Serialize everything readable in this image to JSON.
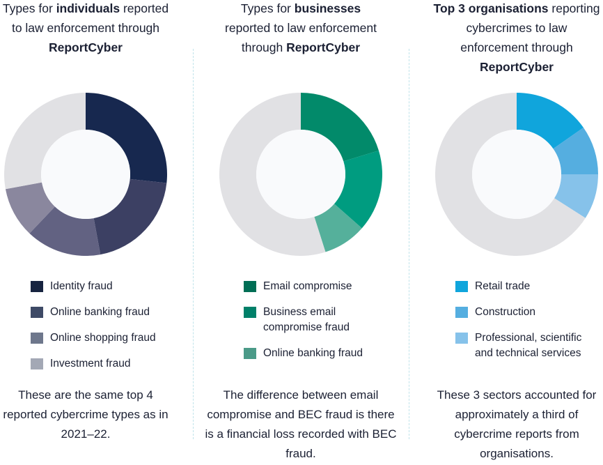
{
  "chart_data": [
    {
      "type": "pie",
      "donut": true,
      "title_parts": [
        "Types for ",
        "individuals",
        " reported to law enforcement through ",
        "ReportCyber"
      ],
      "series": [
        {
          "name": "Identity fraud",
          "value": 26.7,
          "color": "#17284f",
          "legend_color": "#172440"
        },
        {
          "name": "Online banking fraud",
          "value": 20.4,
          "color": "#3c4063",
          "legend_color": "#3e4a66"
        },
        {
          "name": "Online shopping fraud",
          "value": 15,
          "color": "#626282",
          "legend_color": "#6e778c"
        },
        {
          "name": "Investment fraud",
          "value": 10,
          "color": "#8a879e",
          "legend_color": "#a3a8b5"
        }
      ],
      "remainder_color": "#e1e1e4",
      "note": "These are the same top 4 reported cybercrime types as in 2021–22."
    },
    {
      "type": "pie",
      "donut": true,
      "title_parts": [
        "Types for ",
        "businesses",
        " reported to law enforcement through ",
        "ReportCyber"
      ],
      "series": [
        {
          "name": "Email compromise",
          "value": 20.3,
          "color": "#028a6a",
          "legend_color": "#006e55"
        },
        {
          "name": "Business email compromise fraud",
          "value": 16.2,
          "color": "#009c80",
          "legend_color": "#008069"
        },
        {
          "name": "Online banking fraud",
          "value": 8.6,
          "color": "#55b09b",
          "legend_color": "#4b9a88"
        }
      ],
      "remainder_color": "#e1e1e4",
      "note": "The difference between email compromise and BEC fraud is there is a financial loss recorded with BEC fraud."
    },
    {
      "type": "pie",
      "donut": true,
      "title_parts": [
        "",
        "Top 3 organisations",
        " reporting cybercrimes to law enforcement through ",
        "ReportCyber"
      ],
      "series": [
        {
          "name": "Retail trade",
          "value": 15.3,
          "color": "#10a5dc",
          "legend_color": "#10a5dc"
        },
        {
          "name": "Construction",
          "value": 9.7,
          "color": "#55aee0",
          "legend_color": "#55aee0"
        },
        {
          "name": "Professional, scientific and technical services",
          "value": 9,
          "color": "#86c2ea",
          "legend_color": "#86c2ea"
        }
      ],
      "remainder_color": "#e1e1e4",
      "note": "These 3 sectors accounted for approximately a third of cybercrime reports from organisations."
    }
  ]
}
